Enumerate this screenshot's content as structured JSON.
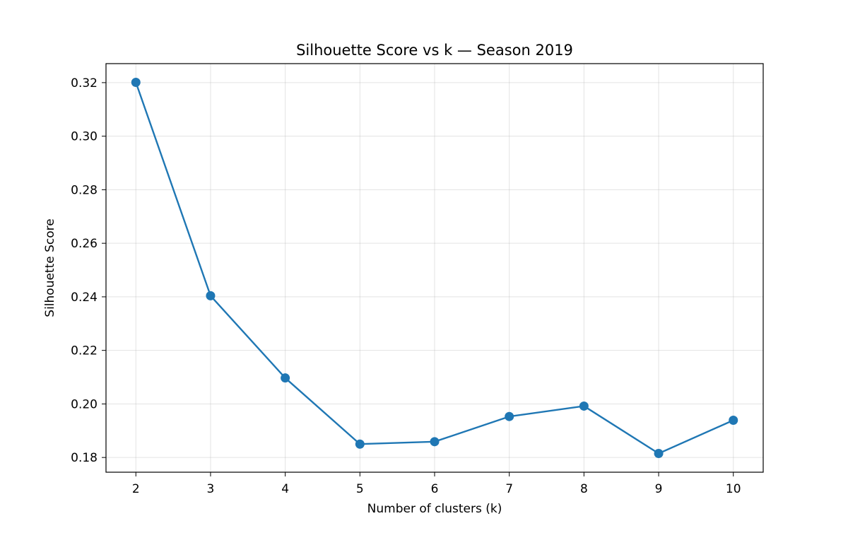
{
  "chart_data": {
    "type": "line",
    "title": "Silhouette Score vs k — Season 2019",
    "xlabel": "Number of clusters (k)",
    "ylabel": "Silhouette Score",
    "x": [
      2,
      3,
      4,
      5,
      6,
      7,
      8,
      9,
      10
    ],
    "series": [
      {
        "values": [
          0.3201,
          0.2404,
          0.2097,
          0.185,
          0.1859,
          0.1953,
          0.1992,
          0.1815,
          0.1939
        ],
        "color": "#1f77b4",
        "marker": "circle"
      }
    ],
    "xticks": [
      2,
      3,
      4,
      5,
      6,
      7,
      8,
      9,
      10
    ],
    "yticks": [
      0.18,
      0.2,
      0.22,
      0.24,
      0.26,
      0.28,
      0.3,
      0.32
    ],
    "ytick_labels": [
      "0.18",
      "0.20",
      "0.22",
      "0.24",
      "0.26",
      "0.28",
      "0.30",
      "0.32"
    ],
    "xlim": [
      1.6,
      10.4
    ],
    "ylim": [
      0.1745,
      0.3271
    ],
    "grid": true,
    "legend": false
  }
}
